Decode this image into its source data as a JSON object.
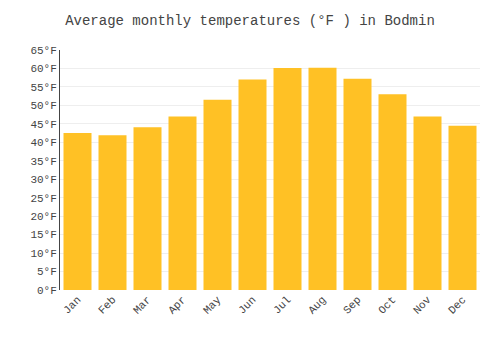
{
  "chart_data": {
    "type": "bar",
    "title": "Average monthly temperatures (°F ) in Bodmin",
    "categories": [
      "Jan",
      "Feb",
      "Mar",
      "Apr",
      "May",
      "Jun",
      "Jul",
      "Aug",
      "Sep",
      "Oct",
      "Nov",
      "Dec"
    ],
    "values": [
      42.5,
      41.9,
      44.1,
      47.0,
      51.5,
      57.0,
      60.1,
      60.2,
      57.2,
      53.0,
      47.0,
      44.5
    ],
    "color": "#FFC125",
    "ylim": [
      0,
      65
    ],
    "yticks": [
      {
        "value": 0,
        "label": "0°F"
      },
      {
        "value": 5,
        "label": "5°F"
      },
      {
        "value": 10,
        "label": "10°F"
      },
      {
        "value": 15,
        "label": "15°F"
      },
      {
        "value": 20,
        "label": "20°F"
      },
      {
        "value": 25,
        "label": "25°F"
      },
      {
        "value": 30,
        "label": "30°F"
      },
      {
        "value": 35,
        "label": "35°F"
      },
      {
        "value": 40,
        "label": "40°F"
      },
      {
        "value": 45,
        "label": "45°F"
      },
      {
        "value": 50,
        "label": "50°F"
      },
      {
        "value": 55,
        "label": "55°F"
      },
      {
        "value": 60,
        "label": "60°F"
      },
      {
        "value": 65,
        "label": "65°F"
      }
    ],
    "grid": true
  }
}
